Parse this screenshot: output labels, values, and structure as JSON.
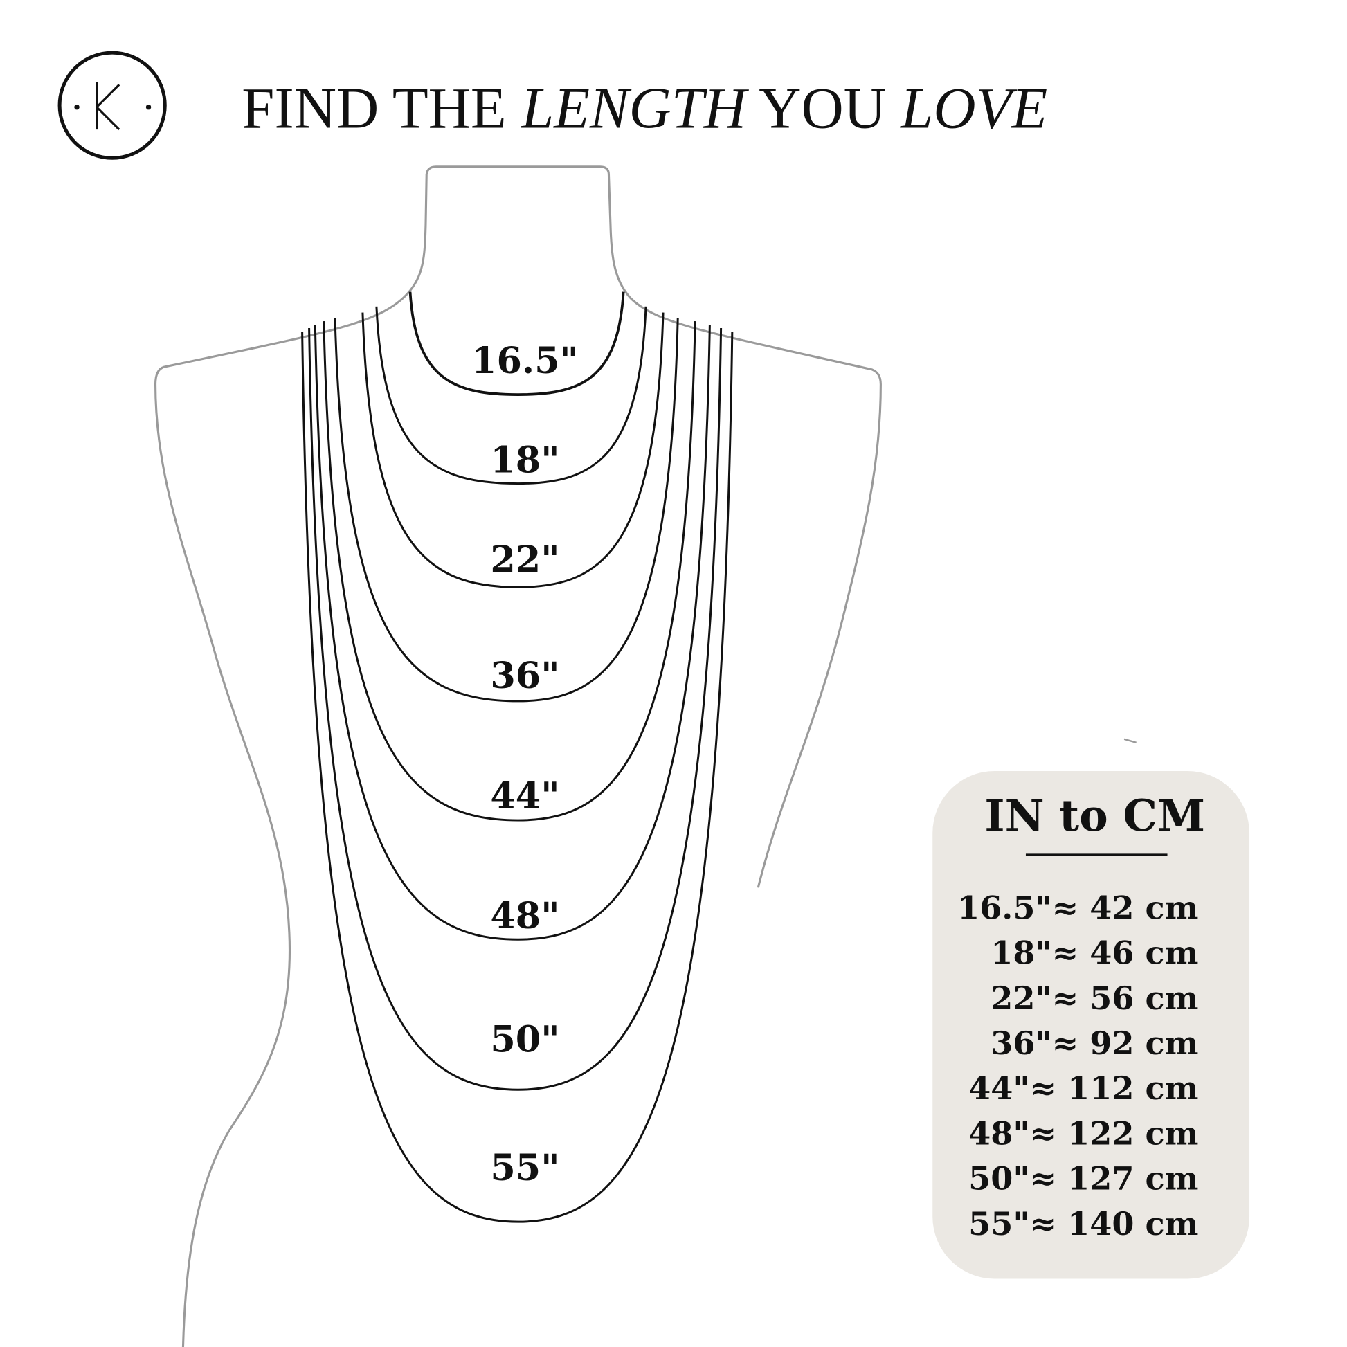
{
  "logo": {
    "letter": "K"
  },
  "title": {
    "part1": "FIND THE ",
    "part2": "LENGTH",
    "part3": " YOU ",
    "part4": "LOVE"
  },
  "necklaces": [
    {
      "label": "16.5\""
    },
    {
      "label": "18\""
    },
    {
      "label": "22\""
    },
    {
      "label": "36\""
    },
    {
      "label": "44\""
    },
    {
      "label": "48\""
    },
    {
      "label": "50\""
    },
    {
      "label": "55\""
    }
  ],
  "conversion": {
    "title": "IN to CM",
    "rows": [
      "16.5\"≈ 42 cm",
      "18\"≈ 46 cm",
      "22\"≈ 56 cm",
      "36\"≈ 92 cm",
      "44\"≈ 112 cm",
      "48\"≈ 122 cm",
      "50\"≈ 127 cm",
      "55\"≈ 140 cm"
    ]
  },
  "colors": {
    "outline": "#9a9a9a",
    "chain": "#111111",
    "panel": "#ebe8e3"
  }
}
